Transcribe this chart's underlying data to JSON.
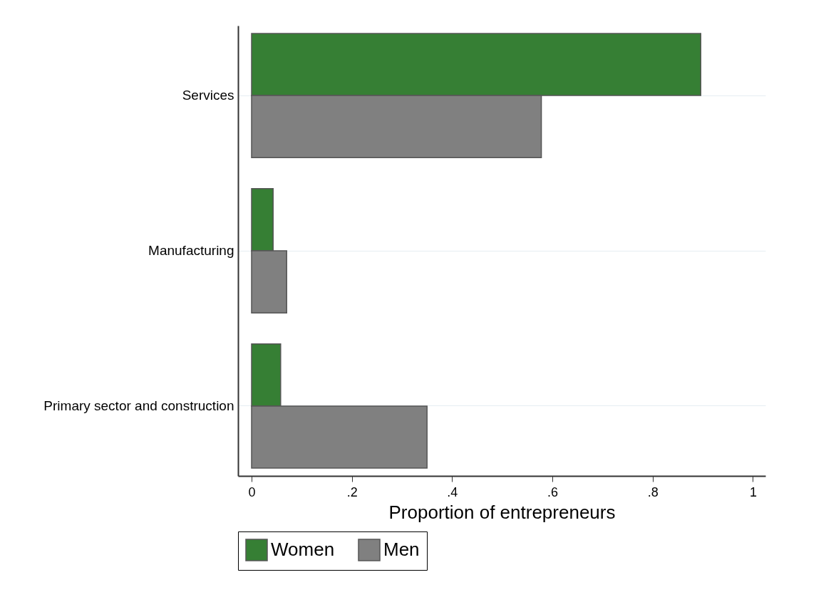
{
  "chart_data": {
    "type": "bar",
    "orientation": "horizontal",
    "xlabel": "Proportion of entrepreneurs",
    "categories": [
      "Services",
      "Manufacturing",
      "Primary sector and construction"
    ],
    "series": [
      {
        "name": "Women",
        "color": "#367f34",
        "values": [
          0.896,
          0.043,
          0.058
        ]
      },
      {
        "name": "Men",
        "color": "#808080",
        "values": [
          0.578,
          0.07,
          0.35
        ]
      }
    ],
    "xlim": [
      -0.027,
      1.025
    ],
    "xticks": [
      0,
      {
        "value": 0.2,
        "label": ".2"
      },
      {
        "value": 0.4,
        "label": ".4"
      },
      {
        "value": 0.6,
        "label": ".6"
      },
      {
        "value": 0.8,
        "label": ".8"
      },
      1
    ],
    "grid": "y",
    "legend": "bottom"
  }
}
